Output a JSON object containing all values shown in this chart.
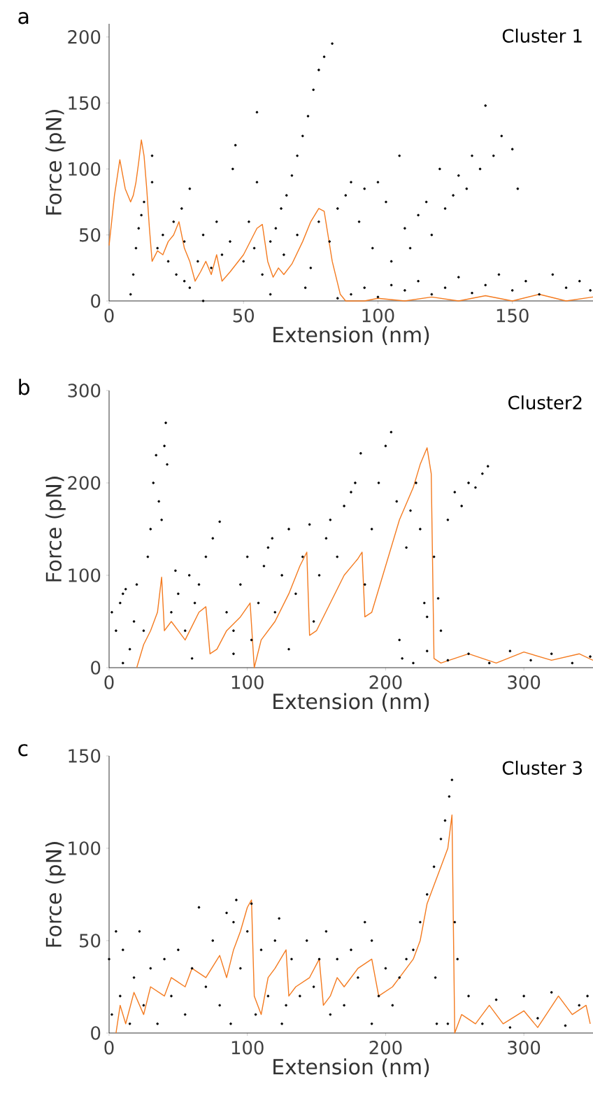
{
  "chart_data": [
    {
      "type": "scatter",
      "title": "Cluster 1",
      "annotations": [
        "a"
      ],
      "xlabel": "Extension (nm)",
      "ylabel": "Force (pN)",
      "xlim": [
        0,
        180
      ],
      "ylim": [
        0,
        210
      ],
      "xticks": [
        0,
        50,
        100,
        150
      ],
      "yticks": [
        0,
        50,
        100,
        150,
        200
      ],
      "series": [
        {
          "color": "#000000",
          "marker": "circle",
          "x": [
            8,
            9,
            10,
            11,
            12,
            13,
            16,
            16,
            18,
            20,
            22,
            24,
            25,
            27,
            28,
            30,
            30,
            33,
            35,
            38,
            40,
            42,
            45,
            46,
            47,
            50,
            52,
            54,
            55,
            55,
            57,
            60,
            62,
            64,
            66,
            68,
            70,
            72,
            74,
            76,
            78,
            80,
            83,
            65,
            70,
            75,
            78,
            82,
            85,
            88,
            90,
            93,
            95,
            98,
            100,
            103,
            105,
            108,
            110,
            112,
            115,
            118,
            120,
            123,
            125,
            128,
            130,
            133,
            135,
            138,
            140,
            143,
            146,
            150,
            152,
            90,
            95,
            100,
            105,
            110,
            115,
            120,
            125,
            130,
            135,
            140,
            145,
            150,
            155,
            160,
            165,
            170,
            175,
            179,
            35,
            28,
            60,
            73,
            85
          ],
          "values": [
            5,
            20,
            40,
            55,
            65,
            75,
            110,
            90,
            40,
            50,
            30,
            60,
            20,
            70,
            45,
            85,
            10,
            30,
            50,
            25,
            60,
            35,
            45,
            100,
            118,
            30,
            60,
            40,
            143,
            90,
            20,
            45,
            55,
            70,
            80,
            95,
            110,
            125,
            140,
            160,
            175,
            185,
            195,
            35,
            50,
            25,
            60,
            45,
            70,
            80,
            90,
            60,
            85,
            40,
            90,
            75,
            30,
            110,
            55,
            40,
            65,
            75,
            50,
            100,
            70,
            80,
            95,
            85,
            110,
            100,
            148,
            110,
            125,
            115,
            85,
            5,
            10,
            3,
            12,
            8,
            15,
            5,
            10,
            18,
            6,
            12,
            20,
            8,
            15,
            5,
            20,
            10,
            15,
            8,
            0,
            15,
            5,
            10,
            2
          ]
        },
        {
          "type": "line",
          "marker": "none",
          "color": "#f47b20",
          "x": [
            0,
            2,
            4,
            6,
            8,
            9,
            10,
            11,
            12,
            13,
            14,
            15,
            16,
            18,
            20,
            22,
            24,
            26,
            28,
            30,
            32,
            34,
            36,
            38,
            40,
            42,
            45,
            50,
            55,
            57,
            59,
            61,
            63,
            65,
            68,
            72,
            75,
            78,
            80,
            83,
            86,
            88,
            95,
            100,
            110,
            120,
            130,
            140,
            150,
            160,
            170,
            180
          ],
          "values": [
            42,
            80,
            107,
            85,
            75,
            80,
            90,
            105,
            122,
            110,
            85,
            55,
            30,
            38,
            35,
            45,
            50,
            60,
            40,
            30,
            15,
            22,
            30,
            20,
            35,
            15,
            22,
            35,
            55,
            58,
            30,
            18,
            25,
            20,
            28,
            45,
            60,
            70,
            68,
            30,
            5,
            0,
            0,
            2,
            0,
            3,
            0,
            4,
            0,
            5,
            0,
            3
          ]
        }
      ]
    },
    {
      "type": "scatter",
      "title": "Cluster2",
      "annotations": [
        "b"
      ],
      "xlabel": "Extension (nm)",
      "ylabel": "Force (pN)",
      "xlim": [
        0,
        350
      ],
      "ylim": [
        0,
        300
      ],
      "xticks": [
        0,
        100,
        200,
        300
      ],
      "yticks": [
        0,
        100,
        200,
        300
      ],
      "series": [
        {
          "color": "#000000",
          "marker": "circle",
          "x": [
            2,
            5,
            8,
            10,
            12,
            15,
            18,
            20,
            25,
            28,
            30,
            32,
            34,
            36,
            38,
            40,
            41,
            42,
            45,
            48,
            50,
            55,
            58,
            62,
            65,
            70,
            75,
            80,
            85,
            90,
            95,
            100,
            103,
            108,
            112,
            115,
            118,
            120,
            125,
            130,
            135,
            140,
            145,
            148,
            152,
            157,
            160,
            165,
            170,
            175,
            178,
            182,
            185,
            190,
            195,
            200,
            204,
            208,
            210,
            212,
            215,
            218,
            222,
            225,
            228,
            230,
            235,
            238,
            240,
            245,
            250,
            255,
            260,
            265,
            270,
            274,
            220,
            230,
            245,
            260,
            275,
            290,
            305,
            320,
            335,
            348,
            10,
            60,
            90,
            130
          ],
          "values": [
            60,
            40,
            70,
            80,
            85,
            20,
            50,
            90,
            40,
            120,
            150,
            200,
            230,
            180,
            160,
            240,
            265,
            220,
            60,
            105,
            80,
            40,
            100,
            70,
            90,
            120,
            140,
            158,
            60,
            40,
            90,
            120,
            30,
            70,
            110,
            130,
            140,
            60,
            100,
            150,
            80,
            120,
            155,
            50,
            100,
            140,
            160,
            120,
            175,
            190,
            200,
            232,
            90,
            150,
            200,
            240,
            255,
            180,
            30,
            10,
            130,
            170,
            200,
            150,
            70,
            55,
            120,
            75,
            40,
            160,
            190,
            175,
            200,
            195,
            210,
            218,
            5,
            18,
            8,
            15,
            5,
            18,
            8,
            15,
            5,
            12,
            5,
            10,
            15,
            20
          ]
        },
        {
          "type": "line",
          "marker": "none",
          "color": "#f47b20",
          "x": [
            20,
            25,
            30,
            35,
            38,
            40,
            45,
            50,
            55,
            60,
            65,
            70,
            73,
            78,
            85,
            95,
            102,
            105,
            110,
            120,
            130,
            138,
            143,
            145,
            150,
            160,
            170,
            180,
            183,
            185,
            190,
            200,
            210,
            220,
            225,
            230,
            233,
            235,
            240,
            260,
            280,
            300,
            320,
            340,
            350
          ],
          "values": [
            0,
            25,
            40,
            60,
            98,
            40,
            50,
            40,
            30,
            45,
            60,
            66,
            15,
            20,
            40,
            55,
            70,
            0,
            30,
            50,
            80,
            110,
            125,
            35,
            40,
            70,
            100,
            118,
            125,
            55,
            60,
            110,
            160,
            195,
            220,
            238,
            210,
            10,
            5,
            15,
            5,
            17,
            8,
            15,
            8
          ]
        }
      ]
    },
    {
      "type": "scatter",
      "title": "Cluster 3",
      "annotations": [
        "c"
      ],
      "xlabel": "Extension (nm)",
      "ylabel": "Force (pN)",
      "xlim": [
        0,
        350
      ],
      "ylim": [
        0,
        150
      ],
      "xticks": [
        0,
        100,
        200,
        300
      ],
      "yticks": [
        0,
        50,
        100,
        150
      ],
      "series": [
        {
          "color": "#000000",
          "marker": "circle",
          "x": [
            0,
            2,
            5,
            8,
            10,
            15,
            18,
            22,
            25,
            30,
            35,
            40,
            45,
            50,
            55,
            60,
            65,
            70,
            75,
            80,
            85,
            88,
            90,
            92,
            95,
            100,
            103,
            106,
            110,
            115,
            120,
            123,
            128,
            132,
            138,
            143,
            148,
            152,
            157,
            160,
            165,
            170,
            175,
            180,
            185,
            190,
            195,
            200,
            205,
            210,
            215,
            220,
            225,
            230,
            235,
            240,
            243,
            246,
            248,
            250,
            252,
            237,
            236,
            245,
            260,
            270,
            280,
            290,
            300,
            310,
            320,
            330,
            340,
            346,
            125,
            190
          ],
          "values": [
            40,
            10,
            55,
            20,
            45,
            5,
            30,
            55,
            15,
            35,
            5,
            40,
            20,
            45,
            10,
            35,
            68,
            25,
            50,
            15,
            65,
            5,
            60,
            72,
            35,
            55,
            70,
            10,
            45,
            20,
            50,
            62,
            15,
            40,
            20,
            50,
            25,
            40,
            55,
            10,
            40,
            15,
            45,
            30,
            60,
            50,
            20,
            35,
            15,
            30,
            40,
            45,
            60,
            75,
            90,
            105,
            115,
            128,
            137,
            60,
            40,
            5,
            30,
            5,
            20,
            5,
            18,
            3,
            20,
            8,
            22,
            4,
            15,
            20,
            5,
            5
          ]
        },
        {
          "type": "line",
          "marker": "none",
          "color": "#f47b20",
          "x": [
            5,
            8,
            12,
            18,
            25,
            30,
            40,
            45,
            55,
            60,
            70,
            80,
            85,
            90,
            95,
            100,
            103,
            105,
            110,
            115,
            120,
            128,
            130,
            135,
            145,
            152,
            155,
            160,
            165,
            170,
            180,
            190,
            195,
            205,
            210,
            220,
            225,
            230,
            240,
            245,
            248,
            250,
            255,
            265,
            275,
            285,
            300,
            310,
            325,
            335,
            345,
            348
          ],
          "values": [
            0,
            15,
            5,
            22,
            10,
            25,
            20,
            30,
            25,
            35,
            30,
            42,
            30,
            45,
            55,
            68,
            72,
            20,
            10,
            30,
            35,
            45,
            20,
            25,
            30,
            40,
            15,
            20,
            30,
            25,
            35,
            40,
            20,
            25,
            30,
            40,
            50,
            70,
            90,
            100,
            118,
            0,
            10,
            5,
            15,
            5,
            12,
            3,
            20,
            10,
            15,
            5
          ]
        }
      ]
    }
  ]
}
